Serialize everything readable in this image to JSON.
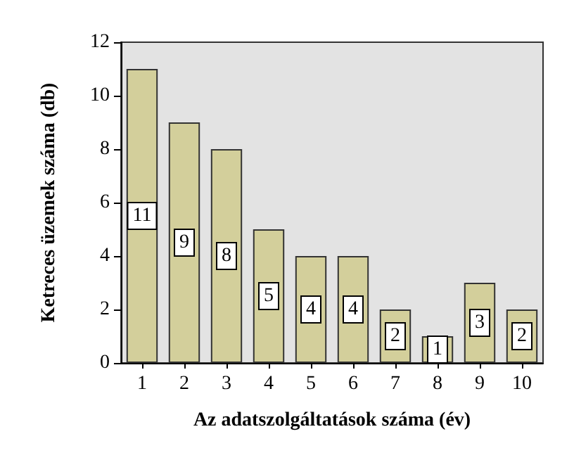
{
  "chart_data": {
    "type": "bar",
    "xlabel": "Az adatszolgáltatások száma (év)",
    "ylabel": "Ketreces üzemek száma (db)",
    "categories": [
      "1",
      "2",
      "3",
      "4",
      "5",
      "6",
      "7",
      "8",
      "9",
      "10"
    ],
    "values": [
      11,
      9,
      8,
      5,
      4,
      4,
      2,
      1,
      3,
      2
    ],
    "color": "#d3cf9b",
    "ylim": [
      0,
      12
    ],
    "yticks": [
      0,
      2,
      4,
      6,
      8,
      10,
      12
    ],
    "data_labels": true,
    "grid": false
  }
}
